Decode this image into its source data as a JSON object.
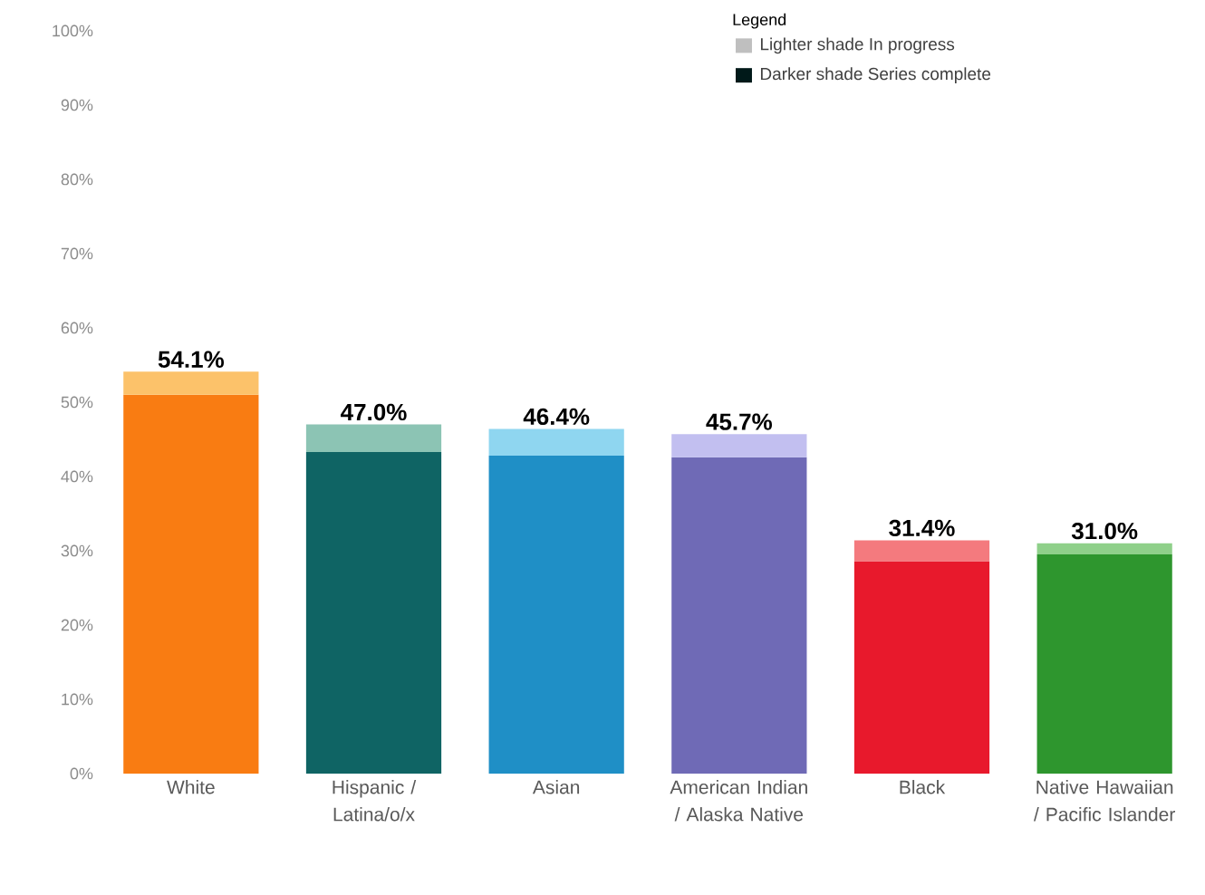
{
  "chart_data": {
    "type": "bar",
    "stacked": true,
    "categories": [
      "White",
      "Hispanic / Latina/o/x",
      "Asian",
      "American Indian / Alaska Native",
      "Black",
      "Native Hawaiian / Pacific Islander"
    ],
    "series": [
      {
        "colors": [
          "#f97c12",
          "#0f6464",
          "#1f8fc6",
          "#6f6ab6",
          "#e8192c",
          "#2e962e"
        ],
        "values": [
          51.0,
          43.3,
          42.8,
          42.6,
          28.6,
          29.5
        ]
      },
      {
        "colors": [
          "#fcc26a",
          "#8cc4b4",
          "#8fd6f0",
          "#c2bff0",
          "#f47a7e",
          "#8fd08a"
        ],
        "values": [
          3.1,
          3.7,
          3.6,
          3.1,
          2.8,
          1.5
        ]
      }
    ],
    "totals": [
      "54.1%",
      "47.0%",
      "46.4%",
      "45.7%",
      "31.4%",
      "31.0%"
    ],
    "ylim": [
      0,
      100
    ],
    "yticks": [
      {
        "value": 0,
        "label": "0%"
      },
      {
        "value": 10,
        "label": "10%"
      },
      {
        "value": 20,
        "label": "20%"
      },
      {
        "value": 30,
        "label": "30%"
      },
      {
        "value": 40,
        "label": "40%"
      },
      {
        "value": 50,
        "label": "50%"
      },
      {
        "value": 60,
        "label": "60%"
      },
      {
        "value": 70,
        "label": "70%"
      },
      {
        "value": 80,
        "label": "80%"
      },
      {
        "value": 90,
        "label": "90%"
      },
      {
        "value": 100,
        "label": "100%"
      }
    ],
    "annotations": [
      "Legend",
      "Lighter shade  In progress",
      "Darker shade  Series complete"
    ]
  }
}
